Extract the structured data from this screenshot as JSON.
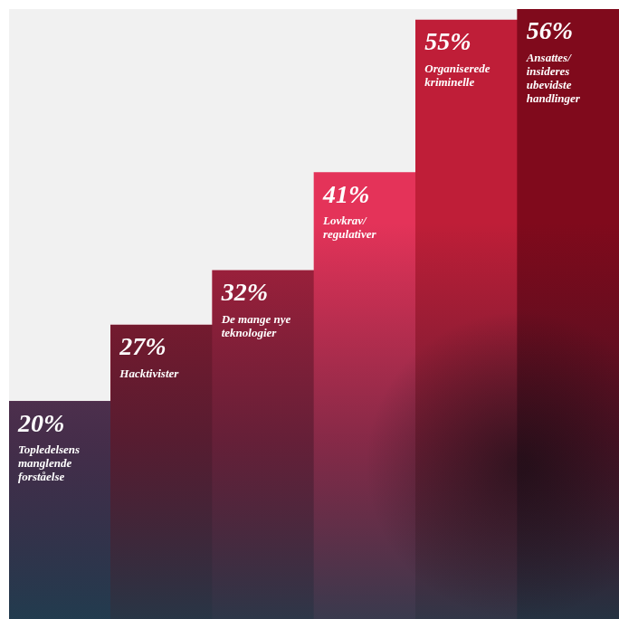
{
  "chart_data": {
    "type": "bar",
    "categories": [
      "Topledelsens manglende forståelse",
      "Hacktivister",
      "De mange nye teknologier",
      "Lovkrav/regulativer",
      "Organiserede kriminelle",
      "Ansattes/insideres ubevidste handlinger"
    ],
    "values": [
      20,
      27,
      32,
      41,
      55,
      56
    ],
    "value_labels": [
      "20%",
      "27%",
      "32%",
      "41%",
      "55%",
      "56%"
    ],
    "colors": [
      "#6e3a5e",
      "#8e1b30",
      "#a8213d",
      "#e43359",
      "#bf1e38",
      "#800a1c"
    ],
    "ylim": [
      0,
      56
    ],
    "data_labels": true,
    "tick_labels": false,
    "grid": false
  }
}
